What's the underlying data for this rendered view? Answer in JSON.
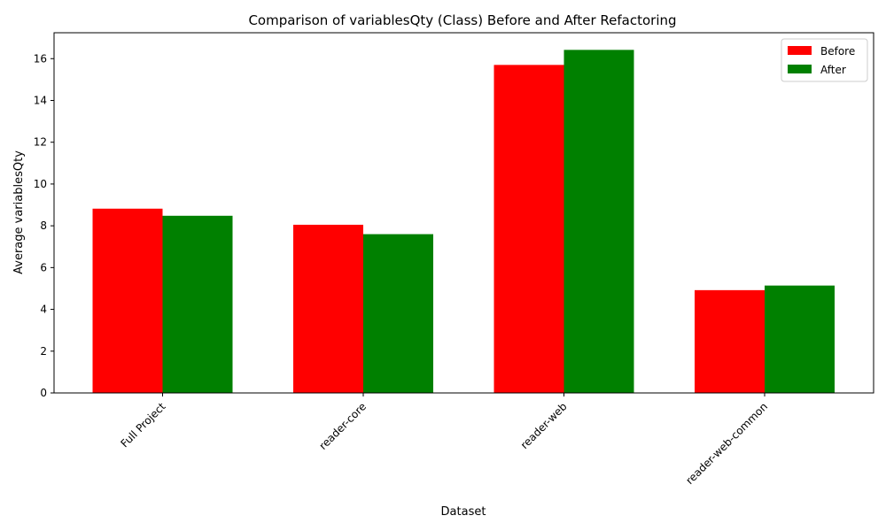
{
  "chart_data": {
    "type": "bar",
    "title": "Comparison of variablesQty (Class) Before and After Refactoring",
    "xlabel": "Dataset",
    "ylabel": "Average variablesQty",
    "categories": [
      "Full Project",
      "reader-core",
      "reader-web",
      "reader-web-common"
    ],
    "series": [
      {
        "name": "Before",
        "color": "#ff0000",
        "values": [
          8.82,
          8.05,
          15.7,
          4.92
        ]
      },
      {
        "name": "After",
        "color": "#008000",
        "values": [
          8.48,
          7.6,
          16.42,
          5.14
        ]
      }
    ],
    "ylim": [
      0,
      17.24
    ],
    "yticks": [
      0,
      2,
      4,
      6,
      8,
      10,
      12,
      14,
      16
    ],
    "grid": false,
    "legend": "top-right"
  }
}
